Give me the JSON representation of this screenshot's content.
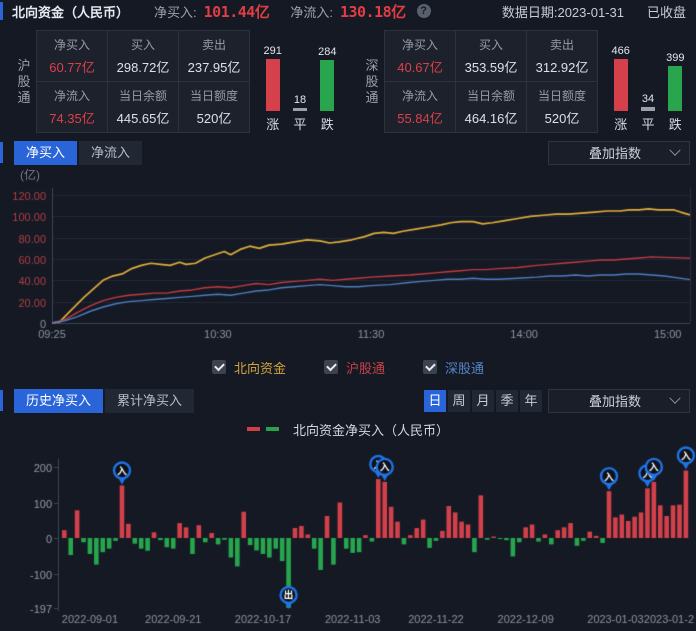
{
  "header": {
    "title": "北向资金（人民币）",
    "net_buy_label": "净买入:",
    "net_buy_value": "101.44亿",
    "net_flow_label": "净流入:",
    "net_flow_value": "130.18亿",
    "help_glyph": "?",
    "data_date": "数据日期:2023-01-31",
    "market_status": "已收盘"
  },
  "panels": [
    {
      "name": "沪股通",
      "cells": [
        {
          "label": "净买入",
          "value": "60.77亿",
          "red": true
        },
        {
          "label": "买入",
          "value": "298.72亿",
          "red": false
        },
        {
          "label": "卖出",
          "value": "237.95亿",
          "red": false
        },
        {
          "label": "净流入",
          "value": "74.35亿",
          "red": true
        },
        {
          "label": "当日余额",
          "value": "445.65亿",
          "red": false
        },
        {
          "label": "当日额度",
          "value": "520亿",
          "red": false
        }
      ],
      "updown": {
        "up": 291,
        "flat": 18,
        "down": 284,
        "up_label": "涨",
        "flat_label": "平",
        "down_label": "跌"
      }
    },
    {
      "name": "深股通",
      "cells": [
        {
          "label": "净买入",
          "value": "40.67亿",
          "red": true
        },
        {
          "label": "买入",
          "value": "353.59亿",
          "red": false
        },
        {
          "label": "卖出",
          "value": "312.92亿",
          "red": false
        },
        {
          "label": "净流入",
          "value": "55.84亿",
          "red": true
        },
        {
          "label": "当日余额",
          "value": "464.16亿",
          "red": false
        },
        {
          "label": "当日额度",
          "value": "520亿",
          "red": false
        }
      ],
      "updown": {
        "up": 466,
        "flat": 34,
        "down": 399,
        "up_label": "涨",
        "flat_label": "平",
        "down_label": "跌"
      }
    }
  ],
  "section1": {
    "tabs": [
      "净买入",
      "净流入"
    ],
    "active": 0,
    "overlay_label": "叠加指数",
    "unit_label": "(亿)"
  },
  "legend1": [
    {
      "label": "北向资金",
      "color": "#d1a43d"
    },
    {
      "label": "沪股通",
      "color": "#c5424a"
    },
    {
      "label": "深股通",
      "color": "#5585c8"
    }
  ],
  "section2": {
    "tabs": [
      "历史净买入",
      "累计净买入"
    ],
    "active": 0,
    "period_buttons": [
      "日",
      "周",
      "月",
      "季",
      "年"
    ],
    "active_period": 0,
    "overlay_label": "叠加指数"
  },
  "legend2": {
    "label": "北向资金净买入（人民币）",
    "colors": [
      "#d03f46",
      "#2ca04a"
    ]
  },
  "chart_data": [
    {
      "id": "intraday",
      "type": "line",
      "ylim": [
        0,
        125
      ],
      "grid": true,
      "ytick_color": "#ad4046",
      "ytick_zero_color": "#8d93a0",
      "xtick_color": "#8d93a0",
      "yticks": [
        {
          "v": 120,
          "label": "120.00"
        },
        {
          "v": 100,
          "label": "100.00"
        },
        {
          "v": 80,
          "label": "80.00"
        },
        {
          "v": 60,
          "label": "60.00"
        },
        {
          "v": 40,
          "label": "40.00"
        },
        {
          "v": 20,
          "label": "20.00"
        },
        {
          "v": 0,
          "label": "0"
        }
      ],
      "xticks": [
        {
          "t": 0.0,
          "label": "09:25"
        },
        {
          "t": 0.26,
          "label": "10:30"
        },
        {
          "t": 0.5,
          "label": "11:30"
        },
        {
          "t": 0.74,
          "label": "14:00"
        },
        {
          "t": 0.965,
          "label": "15:00"
        }
      ],
      "series": [
        {
          "name": "北向资金",
          "color": "#dfae3b",
          "width": 1.7,
          "points": [
            [
              0,
              0
            ],
            [
              0.012,
              1
            ],
            [
              0.03,
              12
            ],
            [
              0.05,
              24
            ],
            [
              0.065,
              32
            ],
            [
              0.08,
              40
            ],
            [
              0.095,
              44
            ],
            [
              0.11,
              46
            ],
            [
              0.125,
              51
            ],
            [
              0.14,
              54
            ],
            [
              0.155,
              56
            ],
            [
              0.17,
              55
            ],
            [
              0.185,
              54
            ],
            [
              0.2,
              57
            ],
            [
              0.21,
              55
            ],
            [
              0.225,
              56
            ],
            [
              0.24,
              61
            ],
            [
              0.255,
              64
            ],
            [
              0.27,
              67
            ],
            [
              0.28,
              64
            ],
            [
              0.295,
              69
            ],
            [
              0.31,
              72
            ],
            [
              0.325,
              70
            ],
            [
              0.34,
              73
            ],
            [
              0.36,
              74
            ],
            [
              0.38,
              76
            ],
            [
              0.4,
              78
            ],
            [
              0.42,
              77
            ],
            [
              0.435,
              75
            ],
            [
              0.45,
              76
            ],
            [
              0.47,
              78
            ],
            [
              0.49,
              81
            ],
            [
              0.505,
              84
            ],
            [
              0.52,
              85
            ],
            [
              0.535,
              84
            ],
            [
              0.55,
              86
            ],
            [
              0.57,
              88
            ],
            [
              0.59,
              90
            ],
            [
              0.61,
              92
            ],
            [
              0.625,
              94
            ],
            [
              0.64,
              95
            ],
            [
              0.66,
              95
            ],
            [
              0.675,
              93
            ],
            [
              0.69,
              94
            ],
            [
              0.71,
              96
            ],
            [
              0.73,
              98
            ],
            [
              0.75,
              100
            ],
            [
              0.77,
              101
            ],
            [
              0.79,
              102
            ],
            [
              0.81,
              102
            ],
            [
              0.83,
              103
            ],
            [
              0.85,
              104
            ],
            [
              0.87,
              105
            ],
            [
              0.89,
              105
            ],
            [
              0.905,
              106
            ],
            [
              0.92,
              106
            ],
            [
              0.935,
              107
            ],
            [
              0.95,
              106
            ],
            [
              0.975,
              106
            ],
            [
              0.985,
              104
            ],
            [
              1.0,
              101.4
            ]
          ]
        },
        {
          "name": "沪股通",
          "color": "#c23b43",
          "width": 1.4,
          "points": [
            [
              0,
              0
            ],
            [
              0.02,
              3
            ],
            [
              0.04,
              10
            ],
            [
              0.06,
              16
            ],
            [
              0.08,
              21
            ],
            [
              0.1,
              24
            ],
            [
              0.12,
              26
            ],
            [
              0.14,
              27
            ],
            [
              0.16,
              28
            ],
            [
              0.18,
              28
            ],
            [
              0.2,
              30
            ],
            [
              0.22,
              31
            ],
            [
              0.24,
              33
            ],
            [
              0.26,
              34
            ],
            [
              0.28,
              33
            ],
            [
              0.3,
              35
            ],
            [
              0.32,
              37
            ],
            [
              0.34,
              36
            ],
            [
              0.36,
              38
            ],
            [
              0.38,
              39
            ],
            [
              0.4,
              40
            ],
            [
              0.42,
              41
            ],
            [
              0.44,
              40
            ],
            [
              0.46,
              41
            ],
            [
              0.48,
              42
            ],
            [
              0.5,
              43
            ],
            [
              0.53,
              44
            ],
            [
              0.56,
              45
            ],
            [
              0.58,
              46
            ],
            [
              0.6,
              47
            ],
            [
              0.62,
              48
            ],
            [
              0.64,
              49
            ],
            [
              0.66,
              50
            ],
            [
              0.68,
              50
            ],
            [
              0.7,
              51
            ],
            [
              0.73,
              52
            ],
            [
              0.76,
              54
            ],
            [
              0.78,
              55
            ],
            [
              0.8,
              56
            ],
            [
              0.82,
              57
            ],
            [
              0.84,
              58
            ],
            [
              0.86,
              59
            ],
            [
              0.88,
              59
            ],
            [
              0.9,
              60
            ],
            [
              0.92,
              61
            ],
            [
              0.94,
              62
            ],
            [
              0.96,
              61.5
            ],
            [
              1.0,
              60.8
            ]
          ]
        },
        {
          "name": "深股通",
          "color": "#4d7fc0",
          "width": 1.4,
          "points": [
            [
              0,
              0
            ],
            [
              0.02,
              2
            ],
            [
              0.04,
              6
            ],
            [
              0.06,
              11
            ],
            [
              0.08,
              15
            ],
            [
              0.1,
              18
            ],
            [
              0.12,
              20
            ],
            [
              0.14,
              21
            ],
            [
              0.16,
              22
            ],
            [
              0.18,
              23
            ],
            [
              0.2,
              24
            ],
            [
              0.22,
              25
            ],
            [
              0.24,
              26
            ],
            [
              0.26,
              27
            ],
            [
              0.28,
              26
            ],
            [
              0.3,
              28
            ],
            [
              0.32,
              30
            ],
            [
              0.34,
              31
            ],
            [
              0.36,
              33
            ],
            [
              0.38,
              34
            ],
            [
              0.4,
              35
            ],
            [
              0.42,
              36
            ],
            [
              0.44,
              35
            ],
            [
              0.46,
              34
            ],
            [
              0.48,
              34
            ],
            [
              0.5,
              35
            ],
            [
              0.53,
              36
            ],
            [
              0.56,
              38
            ],
            [
              0.58,
              39
            ],
            [
              0.6,
              40
            ],
            [
              0.62,
              41
            ],
            [
              0.64,
              41
            ],
            [
              0.66,
              42
            ],
            [
              0.68,
              41
            ],
            [
              0.7,
              41
            ],
            [
              0.73,
              42
            ],
            [
              0.76,
              43
            ],
            [
              0.78,
              44
            ],
            [
              0.8,
              44
            ],
            [
              0.82,
              45
            ],
            [
              0.84,
              44
            ],
            [
              0.86,
              45
            ],
            [
              0.88,
              45
            ],
            [
              0.9,
              46
            ],
            [
              0.92,
              46
            ],
            [
              0.94,
              45
            ],
            [
              0.96,
              44
            ],
            [
              1.0,
              40.7
            ]
          ]
        }
      ]
    },
    {
      "id": "history",
      "type": "bar",
      "title": "北向资金净买入（人民币）",
      "ylim": [
        -197,
        200
      ],
      "grid": false,
      "positive_color": "#d2414a",
      "negative_color": "#27a64d",
      "marker_color": "#1f74e8",
      "ytick_color": "#949aa6",
      "xtick_color": "#8d93a0",
      "yticks": [
        {
          "v": 200,
          "label": "200"
        },
        {
          "v": 100,
          "label": "100"
        },
        {
          "v": 0,
          "label": "0"
        },
        {
          "v": -100,
          "label": "-100"
        },
        {
          "v": -197,
          "label": "-197"
        }
      ],
      "values": [
        22,
        -48,
        78,
        -12,
        -45,
        -75,
        -40,
        -30,
        -8,
        148,
        40,
        -16,
        -30,
        -36,
        16,
        -6,
        -26,
        -30,
        42,
        30,
        -45,
        36,
        -12,
        14,
        -18,
        -5,
        -55,
        -80,
        74,
        -20,
        -35,
        -45,
        -55,
        -30,
        -65,
        -197,
        28,
        34,
        10,
        -30,
        -90,
        62,
        -75,
        100,
        -30,
        -42,
        -40,
        8,
        -10,
        166,
        158,
        88,
        46,
        -18,
        8,
        28,
        52,
        -28,
        -8,
        20,
        90,
        72,
        46,
        38,
        -40,
        120,
        -5,
        4,
        -3,
        -6,
        -52,
        -12,
        30,
        38,
        -10,
        10,
        -18,
        22,
        30,
        42,
        -22,
        -8,
        18,
        6,
        -14,
        132,
        58,
        66,
        48,
        60,
        72,
        140,
        158,
        92,
        62,
        92,
        94,
        190
      ],
      "xticks": [
        {
          "i": 4,
          "label": "2022-09-01"
        },
        {
          "i": 17,
          "label": "2022-09-21"
        },
        {
          "i": 31,
          "label": "2022-10-17"
        },
        {
          "i": 45,
          "label": "2022-11-03"
        },
        {
          "i": 58,
          "label": "2022-11-22"
        },
        {
          "i": 72,
          "label": "2022-12-09"
        },
        {
          "i": 86,
          "label": "2023-01-03"
        },
        {
          "i": 97,
          "label": "2023-01-2",
          "align": "right"
        }
      ],
      "markers": [
        {
          "i": 9,
          "glyph": "入"
        },
        {
          "i": 35,
          "glyph": "出"
        },
        {
          "i": 49,
          "glyph": "入"
        },
        {
          "i": 50,
          "glyph": "入"
        },
        {
          "i": 85,
          "glyph": "入"
        },
        {
          "i": 91,
          "glyph": "入"
        },
        {
          "i": 92,
          "glyph": "入"
        },
        {
          "i": 97,
          "glyph": "入"
        }
      ]
    }
  ]
}
